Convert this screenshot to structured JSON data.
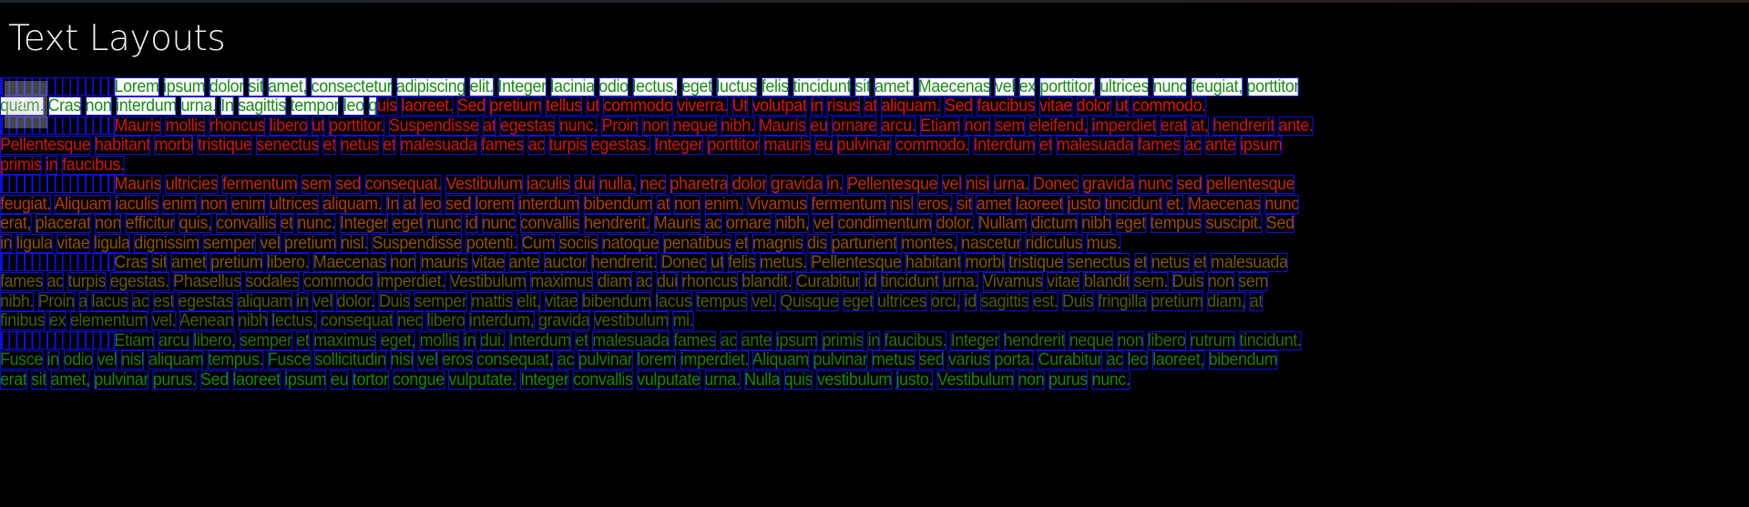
{
  "window": {
    "title": "Text Layouts"
  },
  "colors": {
    "background": "#000000",
    "glyph_box": "#1010e0",
    "selection_bg": "#ffffff",
    "p1_selected": "#1a8a1a",
    "p1_rest": "#e01010",
    "p2": "#cc1515",
    "p3": [
      "#c02a10",
      "#b03a10",
      "#9a4a10",
      "#8a5010"
    ],
    "p4": [
      "#7a5612",
      "#6a5612",
      "#4e5a10",
      "#3e6010"
    ],
    "p5": [
      "#2c6e12",
      "#1f7a14",
      "#1a8414",
      "#178a14"
    ]
  },
  "selection": {
    "start": "Lorem",
    "end_char": "q of quis"
  },
  "paragraphs": [
    {
      "lines": [
        {
          "indent": true,
          "selected": "Lorem ipsum dolor sit amet, consectetur adipiscing elit. Integer lacinia odio lectus, eget luctus felis tincidunt sit amet. Maecenas vel ex porttitor, ultrices nunc feugiat, porttitor",
          "rest": ""
        },
        {
          "indent": false,
          "selected": "quam. Cras non interdum urna. In sagittis tempor leo q",
          "rest": "uis laoreet. Sed pretium tellus ut commodo viverra. Ut volutpat in risus at aliquam. Sed faucibus vitae dolor ut commodo."
        }
      ]
    },
    {
      "lines": [
        {
          "indent": true,
          "text": "Mauris mollis rhoncus libero ut porttitor. Suspendisse at egestas nunc. Proin non neque nibh. Mauris eu ornare arcu. Etiam non sem eleifend, imperdiet erat at, hendrerit ante."
        },
        {
          "indent": false,
          "text": "Pellentesque habitant morbi tristique senectus et netus et malesuada fames ac turpis egestas. Integer porttitor mauris eu pulvinar commodo. Interdum et malesuada fames ac ante ipsum"
        },
        {
          "indent": false,
          "text": "primis in faucibus."
        }
      ]
    },
    {
      "lines": [
        {
          "indent": true,
          "text": "Mauris ultricies fermentum sem sed consequat. Vestibulum iaculis dui nulla, nec pharetra dolor gravida in. Pellentesque vel nisi urna. Donec gravida nunc sed pellentesque"
        },
        {
          "indent": false,
          "text": "feugiat. Aliquam iaculis enim non enim ultrices aliquam. In at leo sed lorem interdum bibendum at non enim. Vivamus fermentum nisl eros, sit amet laoreet justo tincidunt et. Maecenas nunc"
        },
        {
          "indent": false,
          "text": "erat, placerat non efficitur quis, convallis et nunc. Integer eget nunc id nunc convallis hendrerit. Mauris ac ornare nibh, vel condimentum dolor. Nullam dictum nibh eget tempus suscipit. Sed"
        },
        {
          "indent": false,
          "text": "in ligula vitae ligula dignissim semper vel pretium nisl. Suspendisse potenti. Cum sociis natoque penatibus et magnis dis parturient montes, nascetur ridiculus mus."
        }
      ]
    },
    {
      "lines": [
        {
          "indent": true,
          "text": "Cras sit amet pretium libero. Maecenas non mauris vitae ante auctor hendrerit. Donec ut felis metus. Pellentesque habitant morbi tristique senectus et netus et malesuada"
        },
        {
          "indent": false,
          "text": "fames ac turpis egestas. Phasellus sodales commodo imperdiet. Vestibulum maximus diam ac dui rhoncus blandit. Curabitur id tincidunt urna. Vivamus vitae blandit sem. Duis non sem"
        },
        {
          "indent": false,
          "text": "nibh. Proin a lacus ac est egestas aliquam in vel dolor. Duis semper mattis elit, vitae bibendum lacus tempus vel. Quisque eget ultrices orci, id sagittis est. Duis fringilla pretium diam, at"
        },
        {
          "indent": false,
          "text": "finibus ex elementum vel. Aenean nibh lectus, consequat nec libero interdum, gravida vestibulum mi."
        }
      ]
    },
    {
      "lines": [
        {
          "indent": true,
          "text": "Etiam arcu libero, semper et maximus eget, mollis in dui. Interdum et malesuada fames ac ante ipsum primis in faucibus. Integer hendrerit neque non libero rutrum tincidunt."
        },
        {
          "indent": false,
          "text": "Fusce in odio vel nisl aliquam tempus. Fusce sollicitudin nisi vel eros consequat, ac pulvinar lorem imperdiet. Aliquam pulvinar metus sed varius porta. Curabitur ac leo laoreet, bibendum"
        },
        {
          "indent": false,
          "text": "erat sit amet, pulvinar purus. Sed laoreet ipsum eu tortor congue vulputate. Integer convallis vulputate urna. Nulla quis vestibulum justo. Vestibulum non purus nunc."
        }
      ]
    }
  ]
}
